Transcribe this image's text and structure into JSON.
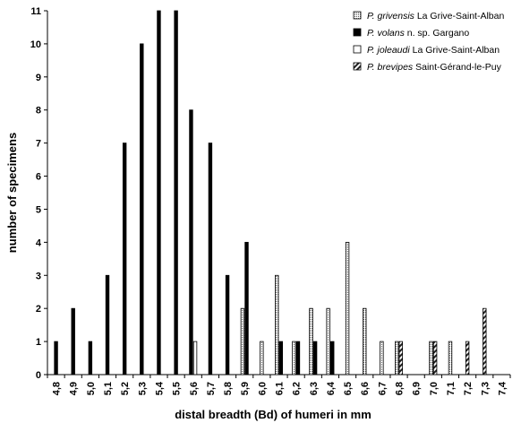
{
  "chart_data": {
    "type": "bar",
    "xlabel": "distal breadth (Bd) of humeri in mm",
    "ylabel": "number of specimens",
    "ylim": [
      0,
      11
    ],
    "yticks": [
      0,
      1,
      2,
      3,
      4,
      5,
      6,
      7,
      8,
      9,
      10,
      11
    ],
    "categories": [
      "4,8",
      "4,9",
      "5,0",
      "5,1",
      "5,2",
      "5,3",
      "5,4",
      "5,5",
      "5,6",
      "5,7",
      "5,8",
      "5,9",
      "6,0",
      "6,1",
      "6,2",
      "6,3",
      "6,4",
      "6,5",
      "6,6",
      "6,7",
      "6,8",
      "6,9",
      "7,0",
      "7,1",
      "7,2",
      "7,3",
      "7,4"
    ],
    "legend_position": "top-right",
    "grid": false,
    "series": [
      {
        "key": "grivensis",
        "species": "P. grivensis",
        "locality": "La Grive-Saint-Alban",
        "pattern": "dotted",
        "values": [
          0,
          0,
          0,
          0,
          0,
          0,
          0,
          0,
          0,
          0,
          0,
          2,
          1,
          3,
          1,
          2,
          2,
          4,
          2,
          1,
          1,
          0,
          1,
          1,
          0,
          0,
          0
        ]
      },
      {
        "key": "volans",
        "species": "P. volans",
        "locality": "n. sp. Gargano",
        "pattern": "solid-black",
        "values": [
          1,
          2,
          1,
          3,
          7,
          10,
          11,
          11,
          8,
          7,
          3,
          4,
          0,
          1,
          1,
          1,
          1,
          0,
          0,
          0,
          0,
          0,
          0,
          0,
          0,
          0,
          0
        ]
      },
      {
        "key": "joleaudi",
        "species": "P. joleaudi",
        "locality": "La Grive-Saint-Alban",
        "pattern": "white",
        "values": [
          0,
          0,
          0,
          0,
          0,
          0,
          0,
          0,
          1,
          0,
          0,
          0,
          0,
          0,
          0,
          0,
          0,
          0,
          0,
          0,
          0,
          0,
          0,
          0,
          0,
          0,
          0
        ]
      },
      {
        "key": "brevipes",
        "species": "P. brevipes",
        "locality": "Saint-Gérand-le-Puy",
        "pattern": "hatched",
        "values": [
          0,
          0,
          0,
          0,
          0,
          0,
          0,
          0,
          0,
          0,
          0,
          0,
          0,
          0,
          0,
          0,
          0,
          0,
          0,
          0,
          1,
          0,
          1,
          0,
          1,
          2,
          0
        ]
      }
    ]
  }
}
